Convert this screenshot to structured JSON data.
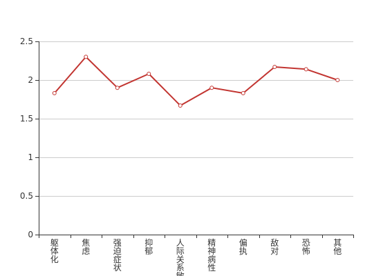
{
  "chart_data": {
    "type": "line",
    "title": "",
    "xlabel": "",
    "ylabel": "",
    "categories": [
      "躯体化",
      "焦虑",
      "强迫症状",
      "抑郁",
      "人际关系敏感",
      "精神病性",
      "偏执",
      "敌对",
      "恐怖",
      "其他"
    ],
    "series": [
      {
        "values": [
          1.83,
          2.3,
          1.9,
          2.08,
          1.67,
          1.9,
          1.83,
          2.17,
          2.14,
          2.0
        ]
      }
    ],
    "y_ticks": [
      "0",
      "0.5",
      "1",
      "1.5",
      "2",
      "2.5"
    ],
    "ylim": [
      0,
      2.5
    ],
    "grid": true,
    "legend": "none",
    "colors": {
      "line": "#c23531",
      "grid": "#cccccc",
      "axis": "#333333",
      "point_fill": "#ffffff"
    }
  }
}
